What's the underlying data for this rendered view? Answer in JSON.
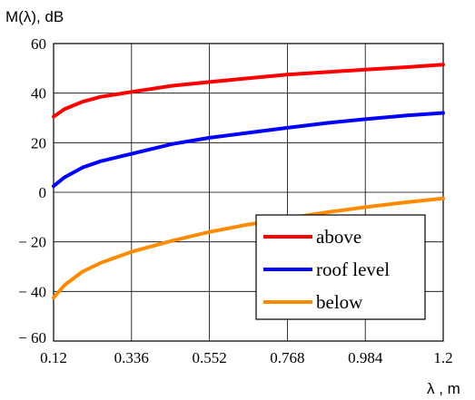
{
  "chart_data": {
    "type": "line",
    "title": "",
    "ylabel": "M(λ), dB",
    "xlabel": "λ , m",
    "xlim": [
      0.12,
      1.2
    ],
    "ylim": [
      -60,
      60
    ],
    "x_ticks": [
      "0.12",
      "0.336",
      "0.552",
      "0.768",
      "0.984",
      "1.2"
    ],
    "y_ticks": [
      "60",
      "40",
      "20",
      "0",
      "− 20",
      "− 40",
      "− 60"
    ],
    "grid": true,
    "legend_position": "bottom-right",
    "series": [
      {
        "name": "above",
        "color": "#ff0000",
        "x": [
          0.12,
          0.15,
          0.2,
          0.25,
          0.336,
          0.45,
          0.552,
          0.66,
          0.768,
          0.88,
          0.984,
          1.1,
          1.2
        ],
        "y": [
          30.5,
          33.5,
          36.5,
          38.5,
          40.5,
          43,
          44.5,
          46,
          47.5,
          48.5,
          49.5,
          50.5,
          51.5
        ]
      },
      {
        "name": "roof level",
        "color": "#0000ff",
        "x": [
          0.12,
          0.15,
          0.2,
          0.25,
          0.336,
          0.45,
          0.552,
          0.66,
          0.768,
          0.88,
          0.984,
          1.1,
          1.2
        ],
        "y": [
          2.5,
          6,
          10,
          12.5,
          15.5,
          19.5,
          22,
          24,
          26,
          28,
          29.5,
          31,
          32
        ]
      },
      {
        "name": "below",
        "color": "#ff8c00",
        "x": [
          0.12,
          0.15,
          0.2,
          0.25,
          0.336,
          0.45,
          0.552,
          0.66,
          0.768,
          0.88,
          0.984,
          1.1,
          1.2
        ],
        "y": [
          -42.5,
          -37.5,
          -32,
          -28.5,
          -24,
          -19.5,
          -16,
          -13,
          -10.5,
          -8,
          -6,
          -4,
          -2.5
        ]
      }
    ]
  }
}
